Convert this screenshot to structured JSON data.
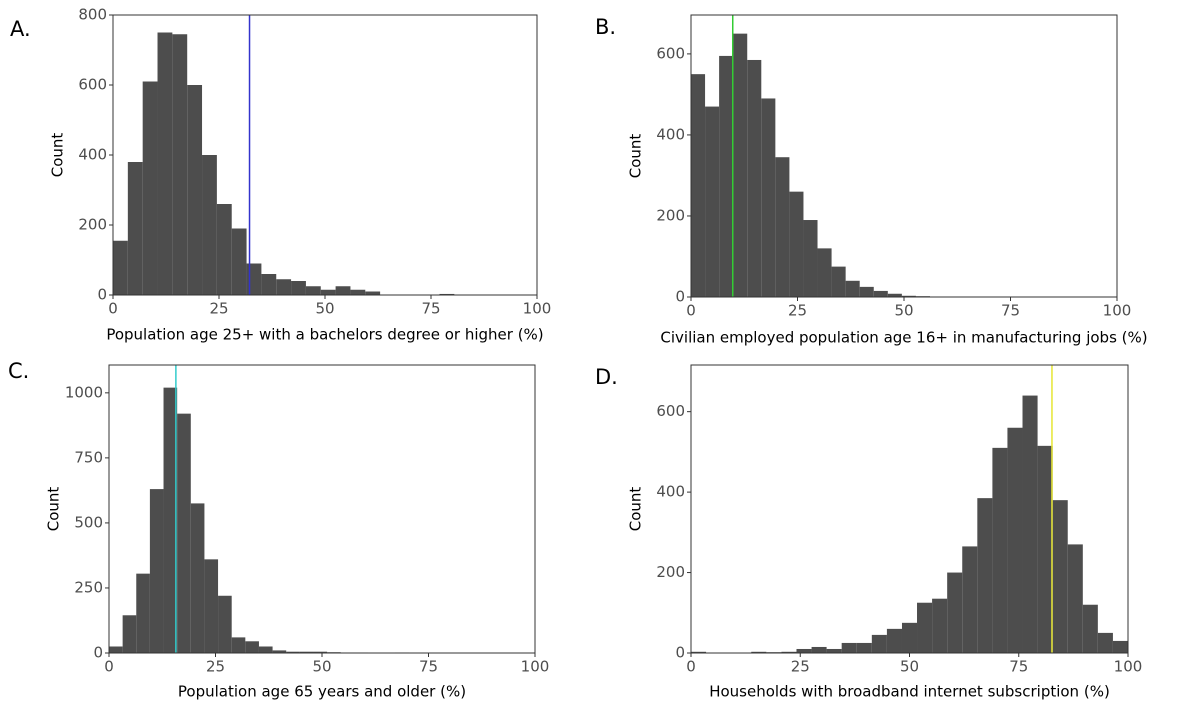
{
  "chart_data": [
    {
      "type": "histogram",
      "panel_label": "A.",
      "xlabel": "Population age 25+ with a bachelors degree or higher (%)",
      "ylabel": "Count",
      "bins": [
        0,
        3.5,
        7,
        10.5,
        14,
        17.5,
        21,
        24.5,
        28,
        31.5,
        35,
        38.5,
        42,
        45.5,
        49,
        52.5,
        56,
        59.5,
        63,
        66.5,
        70,
        73.5,
        77,
        80.5
      ],
      "counts": [
        155,
        380,
        610,
        750,
        745,
        600,
        400,
        260,
        190,
        90,
        60,
        45,
        40,
        25,
        15,
        25,
        15,
        10,
        0,
        0,
        0,
        0,
        3
      ],
      "color": "#4d4d4d",
      "xlim": [
        0,
        100
      ],
      "ylim": [
        0,
        800
      ],
      "xticks": [
        0,
        25,
        50,
        75,
        100
      ],
      "yticks": [
        0,
        200,
        400,
        600,
        800
      ],
      "vline": 32.2,
      "vline_color": "#3333cc",
      "grid": false
    },
    {
      "type": "histogram",
      "panel_label": "B.",
      "xlabel": "Civilian employed population age 16+ in manufacturing jobs (%)",
      "ylabel": "Count",
      "bins": [
        0,
        3.3,
        6.6,
        9.9,
        13.2,
        16.5,
        19.8,
        23.1,
        26.4,
        29.7,
        33,
        36.3,
        39.6,
        42.9,
        46.2,
        49.5,
        52.8,
        56.1,
        59.4,
        62.7,
        66
      ],
      "counts": [
        550,
        470,
        595,
        650,
        585,
        490,
        345,
        260,
        190,
        120,
        75,
        40,
        25,
        15,
        8,
        3,
        2,
        1,
        1,
        1
      ],
      "color": "#4d4d4d",
      "xlim": [
        0,
        100
      ],
      "ylim": [
        0,
        696
      ],
      "xticks": [
        0,
        25,
        50,
        75,
        100
      ],
      "yticks": [
        0,
        200,
        400,
        600
      ],
      "vline": 9.8,
      "vline_color": "#33cc33",
      "grid": false
    },
    {
      "type": "histogram",
      "panel_label": "C.",
      "xlabel": "Population age 65 years and older (%)",
      "ylabel": "Count",
      "bins": [
        0,
        3.2,
        6.4,
        9.6,
        12.8,
        16,
        19.2,
        22.4,
        25.6,
        28.8,
        32,
        35.2,
        38.4,
        41.6,
        44.8,
        48,
        51.2,
        54.4,
        57.6,
        60.8,
        64,
        67.2,
        70.4
      ],
      "counts": [
        25,
        145,
        305,
        630,
        1020,
        920,
        575,
        360,
        220,
        60,
        45,
        25,
        10,
        5,
        5,
        5,
        3,
        2,
        2,
        1,
        1,
        2
      ],
      "color": "#4d4d4d",
      "xlim": [
        0,
        100
      ],
      "ylim": [
        0,
        1107
      ],
      "xticks": [
        0,
        25,
        50,
        75,
        100
      ],
      "yticks": [
        0,
        250,
        500,
        750,
        1000
      ],
      "vline": 15.7,
      "vline_color": "#33cccc",
      "grid": false
    },
    {
      "type": "histogram",
      "panel_label": "D.",
      "xlabel": "Households with broadband internet subscription (%)",
      "ylabel": "Count",
      "bins": [
        0,
        3.45,
        6.9,
        10.34,
        13.79,
        17.24,
        20.69,
        24.14,
        27.59,
        31.03,
        34.48,
        37.93,
        41.38,
        44.83,
        48.28,
        51.72,
        55.17,
        58.62,
        62.07,
        65.52,
        68.97,
        72.41,
        75.86,
        79.31,
        82.76,
        86.21,
        89.66,
        93.1,
        96.55,
        100
      ],
      "counts": [
        3,
        0,
        0,
        1,
        3,
        2,
        3,
        10,
        15,
        10,
        25,
        25,
        45,
        60,
        75,
        125,
        135,
        200,
        265,
        385,
        510,
        560,
        640,
        515,
        380,
        270,
        120,
        50,
        30
      ],
      "color": "#4d4d4d",
      "xlim": [
        0,
        100
      ],
      "ylim": [
        0,
        716
      ],
      "xticks": [
        0,
        25,
        50,
        75,
        100
      ],
      "yticks": [
        0,
        200,
        400,
        600
      ],
      "vline": 82.6,
      "vline_color": "#e6e633",
      "grid": false
    }
  ]
}
